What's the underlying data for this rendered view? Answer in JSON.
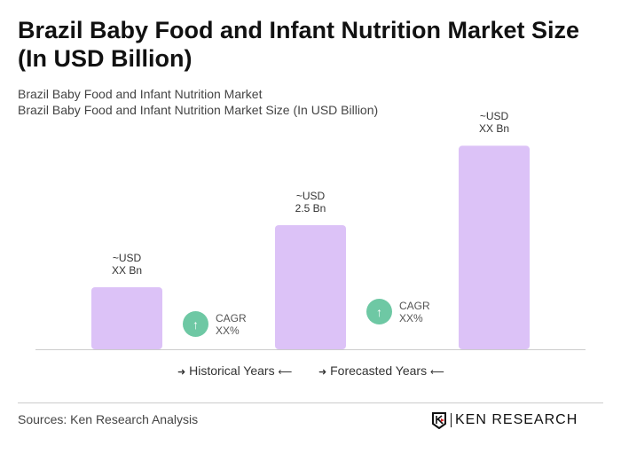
{
  "title": "Brazil Baby Food and Infant Nutrition Market Size (In USD Billion)",
  "subtitle1": "Brazil Baby Food and Infant Nutrition Market",
  "subtitle2": "Brazil Baby Food and Infant Nutrition Market Size (In USD Billion)",
  "chart_data": {
    "type": "bar",
    "color": "#dcc2f7",
    "values": [
      1.25,
      2.5,
      4.1
    ],
    "data_labels": [
      [
        "~USD",
        "XX Bn"
      ],
      [
        "~USD",
        "2.5 Bn"
      ],
      [
        "~USD",
        "XX Bn"
      ]
    ],
    "cagr": [
      {
        "label": "CAGR",
        "value": "XX%"
      },
      {
        "label": "CAGR",
        "value": "XX%"
      }
    ],
    "cagr_color": "#6ec8a4",
    "legend": [
      "Historical Years",
      "Forecasted Years"
    ]
  },
  "sources": "Sources: Ken Research Analysis",
  "logo": "KEN RESEARCH"
}
